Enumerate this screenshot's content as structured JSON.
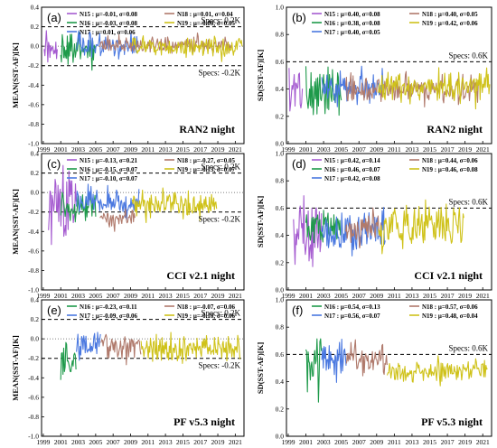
{
  "colors": {
    "N15": "#a55bd0",
    "N16": "#1e9a4a",
    "N17": "#4a78e0",
    "N18": "#b07a6c",
    "N19": "#cfc21a",
    "spec_line": "#000000"
  },
  "x_ticks": [
    "1999",
    "2001",
    "2003",
    "2005",
    "2007",
    "2009",
    "2011",
    "2013",
    "2015",
    "2017",
    "2019",
    "2021"
  ],
  "chart_data": [
    {
      "type": "line",
      "label": "(a)",
      "title": "RAN2 night",
      "ylabel": "MEAN(SST-AF)[K]",
      "ylim": [
        -1.0,
        0.4
      ],
      "yticks": [
        "-1.0",
        "-0.8",
        "-0.6",
        "-0.4",
        "-0.2",
        "0.0",
        "0.2",
        "0.4"
      ],
      "spec_upper": 0.2,
      "spec_lower": -0.2,
      "spec_upper_label": "Specs: 0.2K",
      "spec_lower_label": "Specs: -0.2K",
      "legend_left": [
        "N15 : μ=-0.01, σ=0.08",
        "N16 : μ=-0.03, σ=0.08",
        "N17 : μ=0.01, σ=0.06"
      ],
      "legend_right": [
        "N18 : μ=0.01, σ=0.04",
        "N19 : μ=-0.00, σ=0.05"
      ],
      "series": [
        {
          "name": "N15",
          "x": [
            1999.1,
            2000.6
          ],
          "mean": -0.01,
          "sd": 0.08
        },
        {
          "name": "N16",
          "x": [
            2001.0,
            2005.0
          ],
          "mean": -0.03,
          "sd": 0.08
        },
        {
          "name": "N17",
          "x": [
            2002.8,
            2010.0
          ],
          "mean": 0.01,
          "sd": 0.06
        },
        {
          "name": "N18",
          "x": [
            2005.5,
            2020.5
          ],
          "mean": 0.01,
          "sd": 0.04
        },
        {
          "name": "N19",
          "x": [
            2009.2,
            2021.8
          ],
          "mean": 0.0,
          "sd": 0.05
        }
      ]
    },
    {
      "type": "line",
      "label": "(b)",
      "title": "RAN2 night",
      "ylabel": "SD(SST-AF)[K]",
      "ylim": [
        0.0,
        1.0
      ],
      "yticks": [
        "0.0",
        "0.2",
        "0.4",
        "0.6",
        "0.8",
        "1.0"
      ],
      "spec_upper": 0.6,
      "spec_upper_label": "Specs: 0.6K",
      "legend_left": [
        "N15 : μ=0.40, σ=0.08",
        "N16 : μ=0.38, σ=0.08",
        "N17 : μ=0.40, σ=0.05"
      ],
      "legend_right": [
        "N18 : μ=0.40, σ=0.05",
        "N19 : μ=0.42, σ=0.06"
      ],
      "series": [
        {
          "name": "N15",
          "x": [
            1999.1,
            2000.6
          ],
          "mean": 0.4,
          "sd": 0.08
        },
        {
          "name": "N16",
          "x": [
            2001.0,
            2005.0
          ],
          "mean": 0.38,
          "sd": 0.08
        },
        {
          "name": "N17",
          "x": [
            2002.8,
            2010.0
          ],
          "mean": 0.4,
          "sd": 0.05
        },
        {
          "name": "N18",
          "x": [
            2005.5,
            2020.5
          ],
          "mean": 0.4,
          "sd": 0.05
        },
        {
          "name": "N19",
          "x": [
            2009.2,
            2021.8
          ],
          "mean": 0.42,
          "sd": 0.06
        }
      ]
    },
    {
      "type": "line",
      "label": "(c)",
      "title": "CCI v2.1 night",
      "ylabel": "MEAN(SST-AF)[K]",
      "ylim": [
        -1.0,
        0.4
      ],
      "yticks": [
        "-1.0",
        "-0.8",
        "-0.6",
        "-0.4",
        "-0.2",
        "0.0",
        "0.2",
        "0.4"
      ],
      "spec_upper": 0.2,
      "spec_lower": -0.2,
      "spec_upper_label": "Specs: 0.2K",
      "spec_lower_label": "Specs: -0.2K",
      "legend_left": [
        "N15 : μ=-0.13, σ=0.21",
        "N16 : μ=-0.15, σ=0.07",
        "N17 : μ=-0.10, σ=0.07"
      ],
      "legend_right": [
        "N18 : μ=-0.27, σ=0.05",
        "N19 : μ=-0.13, σ=0.07"
      ],
      "series": [
        {
          "name": "N15",
          "x": [
            1999.6,
            2002.8
          ],
          "mean": -0.13,
          "sd": 0.21
        },
        {
          "name": "N16",
          "x": [
            2001.0,
            2005.0
          ],
          "mean": -0.15,
          "sd": 0.07
        },
        {
          "name": "N17",
          "x": [
            2002.8,
            2010.0
          ],
          "mean": -0.1,
          "sd": 0.07
        },
        {
          "name": "N18",
          "x": [
            2005.5,
            2009.5
          ],
          "mean": -0.27,
          "sd": 0.05
        },
        {
          "name": "N19",
          "x": [
            2009.2,
            2018.9
          ],
          "mean": -0.13,
          "sd": 0.07
        }
      ]
    },
    {
      "type": "line",
      "label": "(d)",
      "title": "CCI v2.1 night",
      "ylabel": "SD(SST-AF)[K]",
      "ylim": [
        0.0,
        1.0
      ],
      "yticks": [
        "0.0",
        "0.2",
        "0.4",
        "0.6",
        "0.8",
        "1.0"
      ],
      "spec_upper": 0.6,
      "spec_upper_label": "Specs: 0.6K",
      "legend_left": [
        "N15 : μ=0.42, σ=0.14",
        "N16 : μ=0.46, σ=0.07",
        "N17 : μ=0.42, σ=0.08"
      ],
      "legend_right": [
        "N18 : μ=0.44, σ=0.06",
        "N19 : μ=0.46, σ=0.08"
      ],
      "series": [
        {
          "name": "N15",
          "x": [
            1999.6,
            2002.8
          ],
          "mean": 0.42,
          "sd": 0.14
        },
        {
          "name": "N16",
          "x": [
            2001.0,
            2005.0
          ],
          "mean": 0.46,
          "sd": 0.07
        },
        {
          "name": "N17",
          "x": [
            2002.8,
            2010.0
          ],
          "mean": 0.42,
          "sd": 0.08
        },
        {
          "name": "N18",
          "x": [
            2005.5,
            2009.5
          ],
          "mean": 0.44,
          "sd": 0.06
        },
        {
          "name": "N19",
          "x": [
            2009.2,
            2018.9
          ],
          "mean": 0.46,
          "sd": 0.08
        }
      ]
    },
    {
      "type": "line",
      "label": "(e)",
      "title": "PF v5.3 night",
      "ylabel": "MEAN(SST-AF)[K]",
      "ylim": [
        -1.0,
        0.4
      ],
      "yticks": [
        "-1.0",
        "-0.8",
        "-0.6",
        "-0.4",
        "-0.2",
        "0.0",
        "0.2",
        "0.4"
      ],
      "spec_upper": 0.2,
      "spec_lower": -0.2,
      "spec_upper_label": "Specs: 0.2K",
      "spec_lower_label": "Specs: -0.2K",
      "legend_left": [
        "N16 : μ=-0.23, σ=0.11",
        "N17 : μ=-0.09, σ=0.06"
      ],
      "legend_right": [
        "N18 : μ=-0.07, σ=0.06",
        "N19 : μ=-0.10, σ=0.06"
      ],
      "series": [
        {
          "name": "N16",
          "x": [
            2001.0,
            2002.8
          ],
          "mean": -0.23,
          "sd": 0.11
        },
        {
          "name": "N17",
          "x": [
            2002.8,
            2005.6
          ],
          "mean": -0.09,
          "sd": 0.06
        },
        {
          "name": "N18",
          "x": [
            2005.6,
            2010.2
          ],
          "mean": -0.07,
          "sd": 0.06
        },
        {
          "name": "N19",
          "x": [
            2010.2,
            2021.6
          ],
          "mean": -0.1,
          "sd": 0.06
        }
      ]
    },
    {
      "type": "line",
      "label": "(f)",
      "title": "PF v5.3 night",
      "ylabel": "SD(SST-AF)[K]",
      "ylim": [
        0.0,
        1.0
      ],
      "yticks": [
        "0.0",
        "0.2",
        "0.4",
        "0.6",
        "0.8",
        "1.0"
      ],
      "spec_upper": 0.6,
      "spec_upper_label": "Specs: 0.6K",
      "legend_left": [
        "N16 : μ=0.54, σ=0.13",
        "N17 : μ=0.56, σ=0.07"
      ],
      "legend_right": [
        "N18 : μ=0.57, σ=0.06",
        "N19 : μ=0.48, σ=0.04"
      ],
      "series": [
        {
          "name": "N16",
          "x": [
            2001.0,
            2002.8
          ],
          "mean": 0.54,
          "sd": 0.13
        },
        {
          "name": "N17",
          "x": [
            2002.8,
            2005.6
          ],
          "mean": 0.56,
          "sd": 0.07
        },
        {
          "name": "N18",
          "x": [
            2005.6,
            2010.2
          ],
          "mean": 0.57,
          "sd": 0.06
        },
        {
          "name": "N19",
          "x": [
            2010.2,
            2021.6
          ],
          "mean": 0.48,
          "sd": 0.04
        }
      ]
    }
  ]
}
